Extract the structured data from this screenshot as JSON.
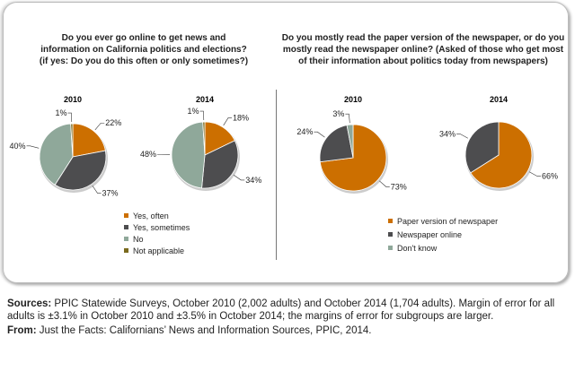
{
  "chart_data": [
    {
      "type": "pie",
      "title": "Do you ever go online to get news and information on California politics and elections? (if yes: Do you do this often or only sometimes?)",
      "legend": [
        "Yes, often",
        "Yes, sometimes",
        "No",
        "Not applicable"
      ],
      "colors": [
        "#CC6F00",
        "#4D4D4F",
        "#8FA89A",
        "#7A6A1E"
      ],
      "pies": [
        {
          "label": "2010",
          "values": [
            22,
            37,
            40,
            1
          ]
        },
        {
          "label": "2014",
          "values": [
            18,
            34,
            48,
            1
          ]
        }
      ]
    },
    {
      "type": "pie",
      "title": "Do you mostly read the paper version of the newspaper, or do you mostly read the newspaper online? (Asked of those who get most of their information about politics today from newspapers)",
      "legend": [
        "Paper version of newspaper",
        "Newspaper online",
        "Don't know"
      ],
      "colors": [
        "#CC6F00",
        "#4D4D4F",
        "#8FA89A"
      ],
      "pies": [
        {
          "label": "2010",
          "values": [
            73,
            24,
            3
          ]
        },
        {
          "label": "2014",
          "values": [
            66,
            34
          ]
        }
      ]
    }
  ],
  "footer": {
    "sources_label": "Sources:",
    "sources_text": " PPIC Statewide Surveys, October 2010 (2,002 adults) and October 2014 (1,704 adults). Margin of error for all adults is ±3.1% in October 2010 and ±3.5% in October 2014; the margins of error for subgroups are larger.",
    "from_label": "From:",
    "from_text": " Just the Facts: Californians’ News and Information Sources, PPIC, 2014."
  }
}
